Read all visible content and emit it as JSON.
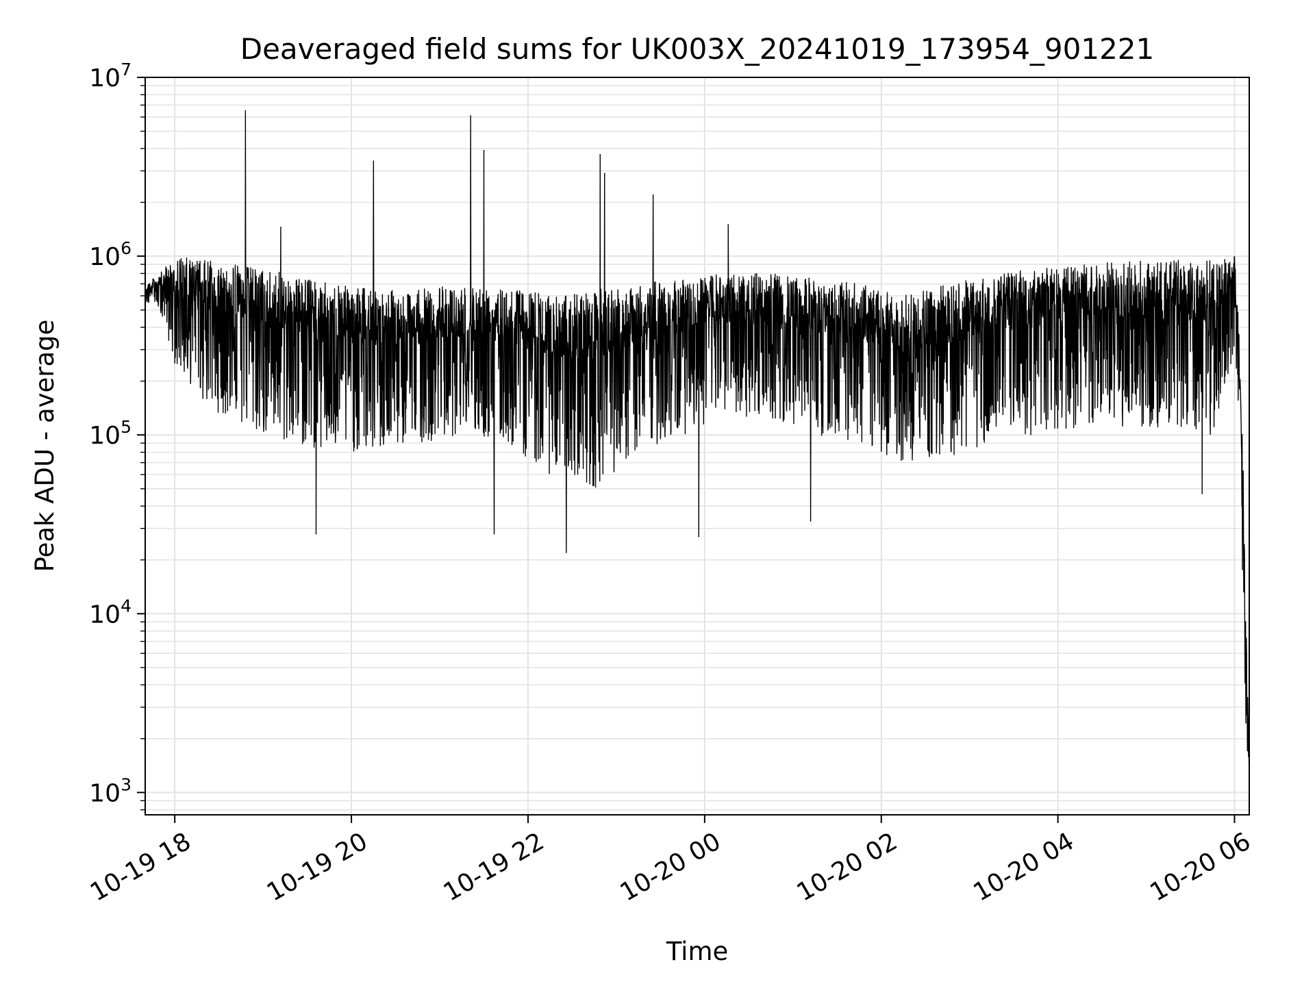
{
  "chart_data": {
    "type": "line",
    "title": "Deaveraged field sums for UK003X_20241019_173954_901221",
    "xlabel": "Time",
    "ylabel": "Peak ADU - average",
    "y_scale": "log",
    "ylim": [
      750,
      10000000
    ],
    "xlim": [
      "2024-10-19T17:39:54",
      "2024-10-20T06:10:00"
    ],
    "grid": true,
    "line_color": "#000000",
    "grid_color": "#e3e3e3",
    "y_ticks": [
      {
        "base": "10",
        "exp": "3",
        "value": 1000
      },
      {
        "base": "10",
        "exp": "4",
        "value": 10000
      },
      {
        "base": "10",
        "exp": "5",
        "value": 100000
      },
      {
        "base": "10",
        "exp": "6",
        "value": 1000000
      },
      {
        "base": "10",
        "exp": "7",
        "value": 10000000
      }
    ],
    "x_ticks": [
      {
        "label": "10-19 18",
        "time": "2024-10-19T18:00:00"
      },
      {
        "label": "10-19 20",
        "time": "2024-10-19T20:00:00"
      },
      {
        "label": "10-19 22",
        "time": "2024-10-19T22:00:00"
      },
      {
        "label": "10-20 00",
        "time": "2024-10-20T00:00:00"
      },
      {
        "label": "10-20 02",
        "time": "2024-10-20T02:00:00"
      },
      {
        "label": "10-20 04",
        "time": "2024-10-20T04:00:00"
      },
      {
        "label": "10-20 06",
        "time": "2024-10-20T06:00:00"
      }
    ],
    "series": [
      {
        "color": "#000000",
        "envelope": {
          "x": [
            "2024-10-19T17:40:00",
            "2024-10-19T17:50:00",
            "2024-10-19T18:00:00",
            "2024-10-19T18:20:00",
            "2024-10-19T18:45:00",
            "2024-10-19T19:15:00",
            "2024-10-19T19:45:00",
            "2024-10-19T20:15:00",
            "2024-10-19T20:45:00",
            "2024-10-19T21:15:00",
            "2024-10-19T21:45:00",
            "2024-10-19T22:15:00",
            "2024-10-19T22:45:00",
            "2024-10-19T23:15:00",
            "2024-10-19T23:45:00",
            "2024-10-20T00:15:00",
            "2024-10-20T00:45:00",
            "2024-10-20T01:15:00",
            "2024-10-20T01:45:00",
            "2024-10-20T02:15:00",
            "2024-10-20T02:45:00",
            "2024-10-20T03:15:00",
            "2024-10-20T03:45:00",
            "2024-10-20T04:15:00",
            "2024-10-20T04:45:00",
            "2024-10-20T05:15:00",
            "2024-10-20T05:45:00",
            "2024-10-20T06:00:00",
            "2024-10-20T06:03:00",
            "2024-10-20T06:06:00",
            "2024-10-20T06:08:00",
            "2024-10-20T06:10:00"
          ],
          "upper": [
            700000,
            800000,
            1000000,
            950000,
            900000,
            800000,
            700000,
            650000,
            650000,
            700000,
            700000,
            600000,
            650000,
            700000,
            750000,
            800000,
            800000,
            750000,
            700000,
            600000,
            700000,
            800000,
            850000,
            900000,
            950000,
            950000,
            950000,
            1000000,
            400000,
            60000,
            8000,
            1500
          ],
          "lower": [
            550000,
            500000,
            250000,
            150000,
            110000,
            90000,
            80000,
            80000,
            90000,
            100000,
            90000,
            60000,
            50000,
            80000,
            100000,
            130000,
            120000,
            100000,
            90000,
            70000,
            75000,
            90000,
            100000,
            110000,
            110000,
            110000,
            100000,
            300000,
            100000,
            10000,
            1500,
            1100
          ]
        },
        "peaks": [
          {
            "x": "2024-10-19T18:48:00",
            "y": 6500000
          },
          {
            "x": "2024-10-19T20:15:00",
            "y": 3400000
          },
          {
            "x": "2024-10-19T21:21:00",
            "y": 6100000
          },
          {
            "x": "2024-10-19T21:30:00",
            "y": 3900000
          },
          {
            "x": "2024-10-19T22:49:00",
            "y": 3700000
          },
          {
            "x": "2024-10-19T22:52:00",
            "y": 2900000
          },
          {
            "x": "2024-10-19T23:25:00",
            "y": 2200000
          },
          {
            "x": "2024-10-19T19:12:00",
            "y": 1450000
          },
          {
            "x": "2024-10-20T00:16:00",
            "y": 1500000
          }
        ],
        "troughs": [
          {
            "x": "2024-10-19T19:36:00",
            "y": 28000
          },
          {
            "x": "2024-10-19T21:37:00",
            "y": 28000
          },
          {
            "x": "2024-10-19T22:26:00",
            "y": 22000
          },
          {
            "x": "2024-10-19T23:56:00",
            "y": 27000
          },
          {
            "x": "2024-10-20T01:12:00",
            "y": 33000
          },
          {
            "x": "2024-10-20T05:38:00",
            "y": 47000
          }
        ]
      }
    ]
  }
}
